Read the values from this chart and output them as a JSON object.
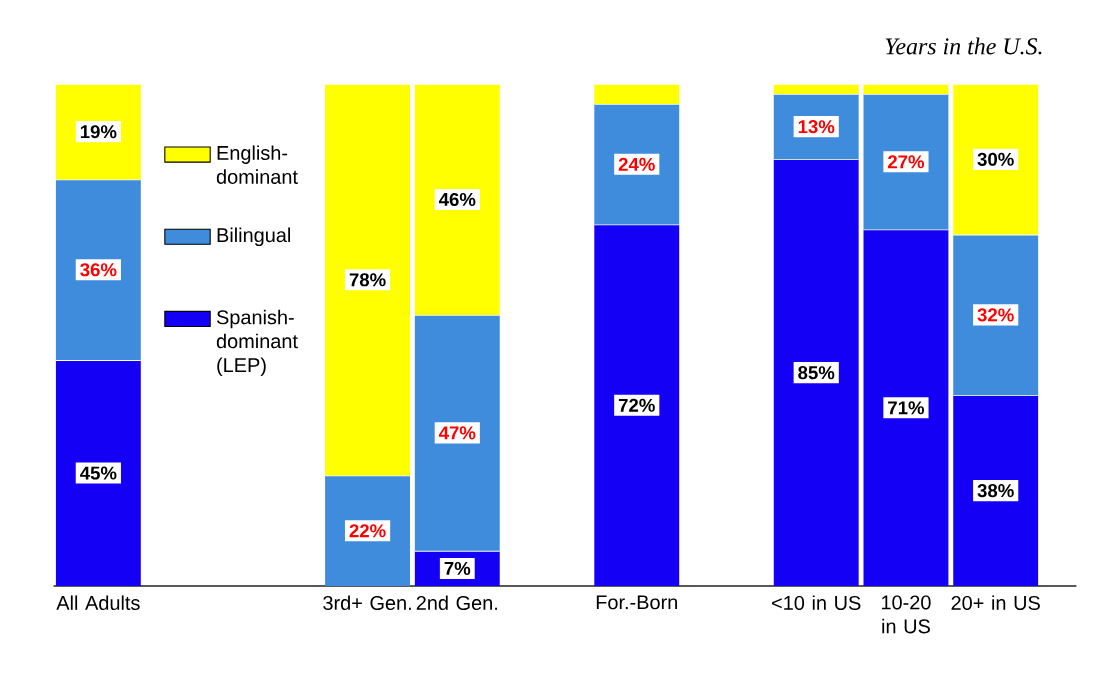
{
  "chart_data": {
    "type": "bar",
    "stacked": true,
    "categories": [
      "All Adults",
      null,
      null,
      "3rd+ Gen.",
      "2nd Gen.",
      null,
      "For.-Born",
      null,
      "<10 in US",
      "10-20 in US",
      "20+ in US"
    ],
    "series": [
      {
        "name": "Spanish-dominant (LEP)",
        "color": "#1400f5",
        "values": [
          45,
          null,
          null,
          null,
          7,
          null,
          72,
          null,
          85,
          71,
          38
        ],
        "value_labels": [
          "45%",
          null,
          null,
          null,
          "7%",
          null,
          "72%",
          null,
          "85%",
          "71%",
          "38%"
        ]
      },
      {
        "name": "Bilingual",
        "color": "#3f8cdc",
        "values": [
          36,
          null,
          null,
          22,
          47,
          null,
          24,
          null,
          13,
          27,
          32
        ],
        "value_labels": [
          "36%",
          null,
          null,
          "22%",
          "47%",
          null,
          "24%",
          null,
          "13%",
          "27%",
          "32%"
        ]
      },
      {
        "name": "English-dominant",
        "color": "#ffff00",
        "values": [
          19,
          null,
          null,
          78,
          46,
          null,
          4,
          null,
          2,
          2,
          30
        ],
        "value_labels": [
          "19%",
          null,
          null,
          "78%",
          "46%",
          null,
          null,
          null,
          null,
          null,
          "30%"
        ]
      }
    ],
    "legend": "top left",
    "annotations": [
      "Years in the U.S."
    ]
  }
}
